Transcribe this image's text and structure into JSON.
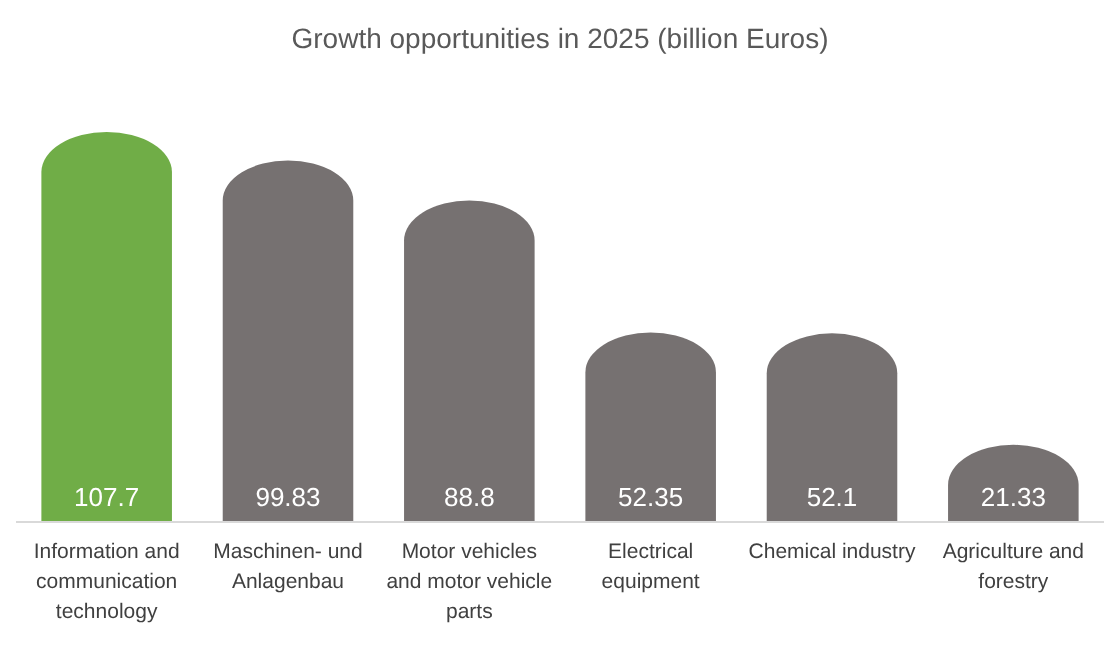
{
  "chart_data": {
    "type": "bar",
    "title": "Growth opportunities in 2025 (billion Euros)",
    "categories": [
      "Information and communication technology",
      "Maschinen- und Anlagenbau",
      "Motor vehicles and motor vehicle parts",
      "Electrical equipment",
      "Chemical industry",
      "Agriculture and forestry"
    ],
    "values": [
      107.7,
      99.83,
      88.8,
      52.35,
      52.1,
      21.33
    ],
    "colors": [
      "#70ad47",
      "#767171",
      "#767171",
      "#767171",
      "#767171",
      "#767171"
    ],
    "data_labels": true
  }
}
